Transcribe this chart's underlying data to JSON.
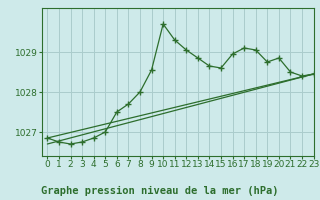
{
  "title": "Graphe pression niveau de la mer (hPa)",
  "background_color": "#ceeaea",
  "grid_color": "#aacccc",
  "line_color": "#2d6e2d",
  "xlim": [
    -0.5,
    23
  ],
  "ylim": [
    1026.4,
    1030.1
  ],
  "yticks": [
    1027,
    1028,
    1029
  ],
  "xticks": [
    0,
    1,
    2,
    3,
    4,
    5,
    6,
    7,
    8,
    9,
    10,
    11,
    12,
    13,
    14,
    15,
    16,
    17,
    18,
    19,
    20,
    21,
    22,
    23
  ],
  "hours": [
    0,
    1,
    2,
    3,
    4,
    5,
    6,
    7,
    8,
    9,
    10,
    11,
    12,
    13,
    14,
    15,
    16,
    17,
    18,
    19,
    20,
    21,
    22,
    23
  ],
  "line1": [
    1026.85,
    1026.75,
    1026.7,
    1026.75,
    1026.85,
    1027.0,
    1027.5,
    1027.7,
    1028.0,
    1028.55,
    1029.7,
    1029.3,
    1029.05,
    1028.85,
    1028.65,
    1028.6,
    1028.95,
    1029.1,
    1029.05,
    1028.75,
    1028.85,
    1028.5,
    1028.4,
    1028.45
  ],
  "line2_x": [
    0,
    23
  ],
  "line2_y": [
    1026.85,
    1028.45
  ],
  "line3_x": [
    0,
    23
  ],
  "line3_y": [
    1026.7,
    1028.45
  ],
  "tick_fontsize": 6.5,
  "xlabel_fontsize": 7.5
}
